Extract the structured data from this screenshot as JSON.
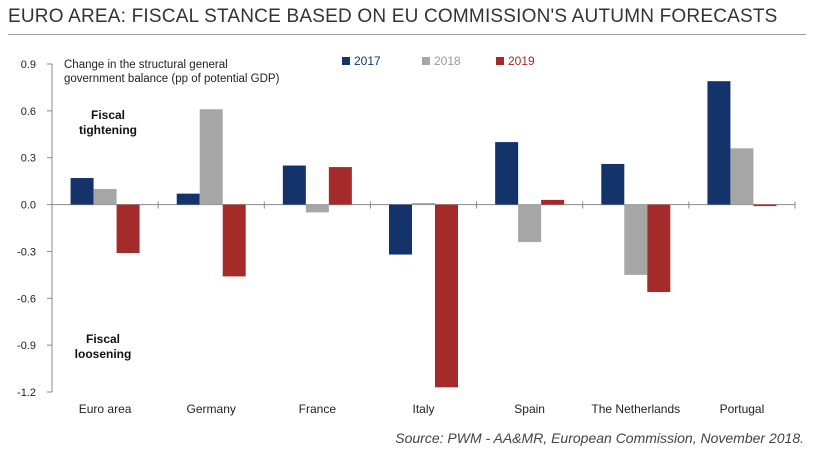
{
  "title": "EURO AREA: FISCAL STANCE BASED ON EU COMMISSION'S AUTUMN FORECASTS",
  "source": "Source: PWM - AA&MR, European Commission, November 2018.",
  "chart_data": {
    "type": "bar",
    "title": "EURO AREA: FISCAL STANCE BASED ON EU COMMISSION'S AUTUMN FORECASTS",
    "ylabel_lines": [
      "Change in the  structural general",
      "government balance  (pp of potential GDP)"
    ],
    "ylim": [
      -1.2,
      0.9
    ],
    "yticks": [
      0.9,
      0.6,
      0.3,
      0.0,
      -0.3,
      -0.6,
      -0.9,
      -1.2
    ],
    "ytick_labels": [
      "0.9",
      "0.6",
      "0.3",
      "0.0",
      "-0.3",
      "-0.6",
      "-0.9",
      "-1.2"
    ],
    "grid": false,
    "legend_position": "top",
    "categories": [
      "Euro area",
      "Germany",
      "France",
      "Italy",
      "Spain",
      "The Netherlands",
      "Portugal"
    ],
    "series": [
      {
        "name": "2017",
        "color": "#15336b",
        "values": [
          0.17,
          0.07,
          0.25,
          -0.32,
          0.4,
          0.26,
          0.79
        ]
      },
      {
        "name": "2018",
        "color": "#a6a6a6",
        "values": [
          0.1,
          0.61,
          -0.05,
          0.01,
          -0.24,
          -0.45,
          0.36
        ]
      },
      {
        "name": "2019",
        "color": "#a52a2a",
        "values": [
          -0.31,
          -0.46,
          0.24,
          -1.17,
          0.03,
          -0.56,
          -0.01
        ]
      }
    ],
    "annotations": [
      {
        "lines": [
          "Fiscal",
          "tightening"
        ]
      },
      {
        "lines": [
          "Fiscal",
          "loosening"
        ]
      }
    ]
  }
}
